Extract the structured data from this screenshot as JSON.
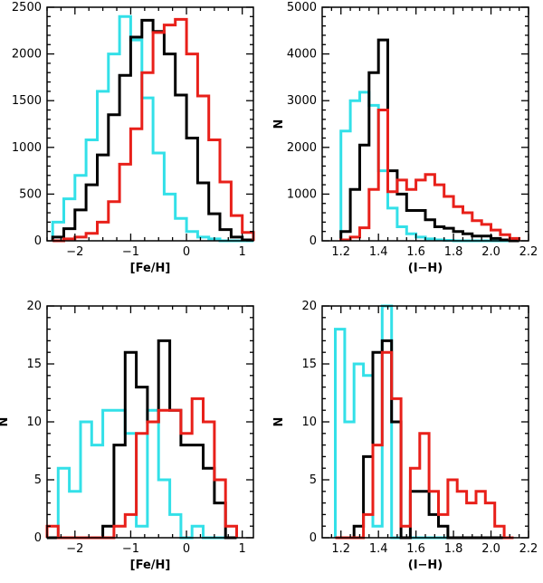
{
  "chart_data": [
    {
      "type": "histogram",
      "id": "top-left",
      "xlabel": "[Fe/H]",
      "ylabel": "",
      "xlim": [
        -2.5,
        1.2
      ],
      "ylim": [
        0,
        2500
      ],
      "xticks": [
        -2,
        -1,
        0,
        1
      ],
      "xtick_labels": [
        "−2",
        "−1",
        "0",
        "1"
      ],
      "yticks": [
        0,
        500,
        1000,
        1500,
        2000,
        2500
      ],
      "ytick_labels": [
        "0",
        "500",
        "1000",
        "1500",
        "2000",
        "2500"
      ],
      "bin_edges": [
        -2.4,
        -2.2,
        -2.0,
        -1.8,
        -1.6,
        -1.4,
        -1.2,
        -1.0,
        -0.8,
        -0.6,
        -0.4,
        -0.2,
        0.0,
        0.2,
        0.4,
        0.6,
        0.8,
        1.0,
        1.2
      ],
      "series": [
        {
          "name": "cyan",
          "color": "#33e0e8",
          "values": [
            200,
            450,
            700,
            1080,
            1600,
            2000,
            2400,
            2150,
            1530,
            940,
            500,
            240,
            100,
            40,
            20,
            0,
            0,
            0
          ]
        },
        {
          "name": "black",
          "color": "#000000",
          "values": [
            40,
            130,
            330,
            600,
            920,
            1350,
            1770,
            2180,
            2360,
            2240,
            2000,
            1560,
            1100,
            620,
            290,
            120,
            40,
            10
          ]
        },
        {
          "name": "red",
          "color": "#e8201a",
          "values": [
            0,
            20,
            40,
            80,
            200,
            420,
            820,
            1200,
            1800,
            2230,
            2310,
            2370,
            2000,
            1550,
            1080,
            630,
            270,
            90
          ]
        }
      ]
    },
    {
      "type": "histogram",
      "id": "top-right",
      "xlabel": "(I−H)",
      "ylabel": "N",
      "xlim": [
        1.1,
        2.2
      ],
      "ylim": [
        0,
        5000
      ],
      "xticks": [
        1.2,
        1.4,
        1.6,
        1.8,
        2.0,
        2.2
      ],
      "xtick_labels": [
        "1.2",
        "1.4",
        "1.6",
        "1.8",
        "2.0",
        "2.2"
      ],
      "yticks": [
        0,
        1000,
        2000,
        3000,
        4000,
        5000
      ],
      "ytick_labels": [
        "0",
        "1000",
        "2000",
        "3000",
        "4000",
        "5000"
      ],
      "bin_edges": [
        1.2,
        1.25,
        1.3,
        1.35,
        1.4,
        1.45,
        1.5,
        1.55,
        1.6,
        1.65,
        1.7,
        1.75,
        1.8,
        1.85,
        1.9,
        1.95,
        2.0,
        2.05,
        2.1,
        2.15
      ],
      "series": [
        {
          "name": "cyan",
          "color": "#33e0e8",
          "values": [
            2350,
            3000,
            3180,
            2900,
            1500,
            700,
            300,
            150,
            80,
            40,
            20,
            10,
            0,
            0,
            0,
            0,
            0,
            0,
            0
          ]
        },
        {
          "name": "black",
          "color": "#000000",
          "values": [
            200,
            1100,
            2050,
            3600,
            4300,
            1500,
            1000,
            650,
            650,
            450,
            300,
            270,
            200,
            150,
            100,
            100,
            50,
            20,
            0
          ]
        },
        {
          "name": "red",
          "color": "#e8201a",
          "values": [
            20,
            80,
            280,
            1100,
            2800,
            1050,
            1300,
            1100,
            1300,
            1420,
            1200,
            950,
            730,
            600,
            430,
            350,
            230,
            130,
            50
          ]
        }
      ]
    },
    {
      "type": "histogram",
      "id": "bottom-left",
      "xlabel": "[Fe/H]",
      "ylabel": "N",
      "xlim": [
        -2.5,
        1.2
      ],
      "ylim": [
        0,
        20
      ],
      "xticks": [
        -2,
        -1,
        0,
        1
      ],
      "xtick_labels": [
        "−2",
        "−1",
        "0",
        "1"
      ],
      "yticks": [
        0,
        5,
        10,
        15,
        20
      ],
      "ytick_labels": [
        "0",
        "5",
        "10",
        "15",
        "20"
      ],
      "bin_edges": [
        -2.5,
        -2.3,
        -2.1,
        -1.9,
        -1.7,
        -1.5,
        -1.3,
        -1.1,
        -0.9,
        -0.7,
        -0.5,
        -0.3,
        -0.1,
        0.1,
        0.3,
        0.5,
        0.7,
        0.9
      ],
      "series": [
        {
          "name": "cyan",
          "color": "#33e0e8",
          "values": [
            0,
            6,
            4,
            10,
            8,
            11,
            11,
            9,
            1,
            11,
            5,
            2,
            0,
            1,
            0,
            0,
            0
          ]
        },
        {
          "name": "black",
          "color": "#000000",
          "values": [
            0,
            0,
            0,
            0,
            0,
            1,
            8,
            16,
            13,
            10,
            17,
            11,
            8,
            8,
            6,
            3,
            0
          ]
        },
        {
          "name": "red",
          "color": "#e8201a",
          "values": [
            1,
            0,
            0,
            0,
            0,
            0,
            1,
            2,
            9,
            10,
            11,
            11,
            9,
            12,
            10,
            5,
            1
          ]
        }
      ]
    },
    {
      "type": "histogram",
      "id": "bottom-right",
      "xlabel": "(I−H)",
      "ylabel": "N",
      "xlim": [
        1.1,
        2.2
      ],
      "ylim": [
        0,
        20
      ],
      "xticks": [
        1.2,
        1.4,
        1.6,
        1.8,
        2.0,
        2.2
      ],
      "xtick_labels": [
        "1.2",
        "1.4",
        "1.6",
        "1.8",
        "2.0",
        "2.2"
      ],
      "yticks": [
        0,
        5,
        10,
        15,
        20
      ],
      "ytick_labels": [
        "0",
        "5",
        "10",
        "15",
        "20"
      ],
      "bin_edges": [
        1.17,
        1.22,
        1.27,
        1.32,
        1.37,
        1.42,
        1.47,
        1.52,
        1.57,
        1.62,
        1.67,
        1.72,
        1.77,
        1.82,
        1.87,
        1.92,
        1.97,
        2.02,
        2.07,
        2.12
      ],
      "series": [
        {
          "name": "cyan",
          "color": "#33e0e8",
          "values": [
            18,
            10,
            15,
            14,
            1,
            20,
            0,
            0,
            0,
            0,
            0,
            0,
            0,
            0,
            0,
            0,
            0,
            0,
            0
          ]
        },
        {
          "name": "black",
          "color": "#000000",
          "values": [
            0,
            0,
            1,
            7,
            16,
            17,
            10,
            0,
            4,
            4,
            2,
            1,
            0,
            0,
            0,
            0,
            0,
            0,
            0
          ]
        },
        {
          "name": "red",
          "color": "#e8201a",
          "values": [
            0,
            0,
            0,
            2,
            8,
            16,
            12,
            1,
            6,
            9,
            4,
            2,
            5,
            4,
            3,
            4,
            3,
            1,
            0
          ]
        }
      ]
    }
  ]
}
